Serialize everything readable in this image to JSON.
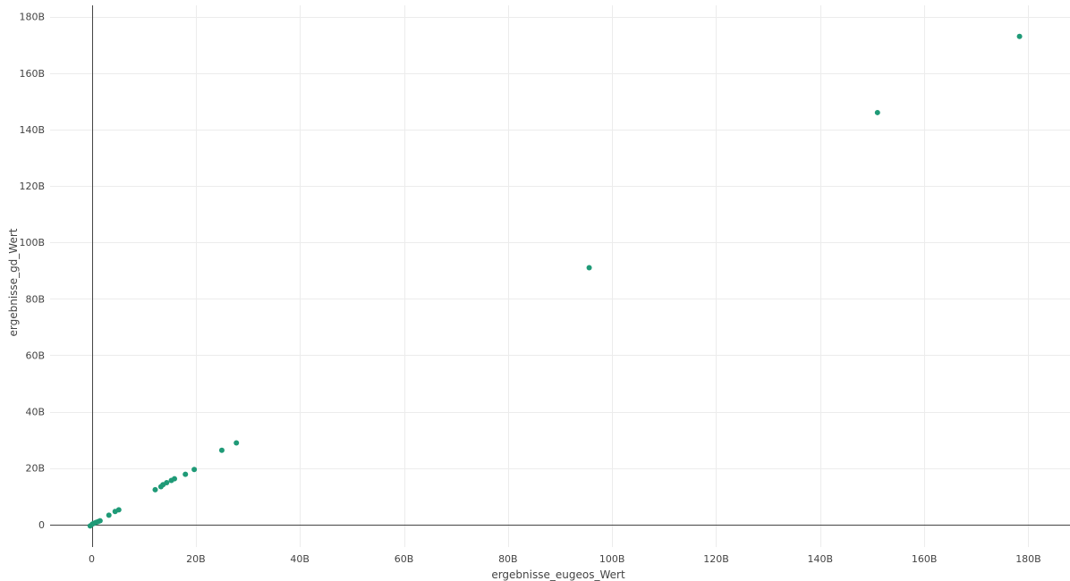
{
  "chart_data": {
    "type": "scatter",
    "title": "",
    "xlabel": "ergebnisse_eugeos_Wert",
    "ylabel": "ergebnisse_gd_Wert",
    "xlim": [
      -8,
      188
    ],
    "ylim": [
      -8,
      184
    ],
    "unit_suffix": "B",
    "grid": true,
    "legend": "none",
    "marker_color": "#1f9a77",
    "x_ticks": [
      {
        "value": 0,
        "label": "0"
      },
      {
        "value": 20,
        "label": "20B"
      },
      {
        "value": 40,
        "label": "40B"
      },
      {
        "value": 60,
        "label": "60B"
      },
      {
        "value": 80,
        "label": "80B"
      },
      {
        "value": 100,
        "label": "100B"
      },
      {
        "value": 120,
        "label": "120B"
      },
      {
        "value": 140,
        "label": "140B"
      },
      {
        "value": 160,
        "label": "160B"
      },
      {
        "value": 180,
        "label": "180B"
      }
    ],
    "y_ticks": [
      {
        "value": 0,
        "label": "0"
      },
      {
        "value": 20,
        "label": "20B"
      },
      {
        "value": 40,
        "label": "40B"
      },
      {
        "value": 60,
        "label": "60B"
      },
      {
        "value": 80,
        "label": "80B"
      },
      {
        "value": 100,
        "label": "100B"
      },
      {
        "value": 120,
        "label": "120B"
      },
      {
        "value": 140,
        "label": "140B"
      },
      {
        "value": 160,
        "label": "160B"
      },
      {
        "value": 180,
        "label": "180B"
      }
    ],
    "points": [
      {
        "x": -0.3,
        "y": -0.5
      },
      {
        "x": 0.1,
        "y": 0.1
      },
      {
        "x": 0.4,
        "y": 0.4
      },
      {
        "x": 0.8,
        "y": 0.7
      },
      {
        "x": 1.2,
        "y": 1.0
      },
      {
        "x": 1.6,
        "y": 1.3
      },
      {
        "x": 3.3,
        "y": 3.3
      },
      {
        "x": 4.5,
        "y": 4.6
      },
      {
        "x": 5.2,
        "y": 5.2
      },
      {
        "x": 12.2,
        "y": 12.3
      },
      {
        "x": 13.3,
        "y": 13.4
      },
      {
        "x": 13.7,
        "y": 14.1
      },
      {
        "x": 14.4,
        "y": 14.8
      },
      {
        "x": 15.3,
        "y": 15.6
      },
      {
        "x": 15.9,
        "y": 16.2
      },
      {
        "x": 18.0,
        "y": 17.8
      },
      {
        "x": 19.7,
        "y": 19.5
      },
      {
        "x": 25.0,
        "y": 26.3
      },
      {
        "x": 27.8,
        "y": 28.9
      },
      {
        "x": 95.6,
        "y": 91.0
      },
      {
        "x": 151.0,
        "y": 146.0
      },
      {
        "x": 178.3,
        "y": 173.0
      }
    ]
  }
}
